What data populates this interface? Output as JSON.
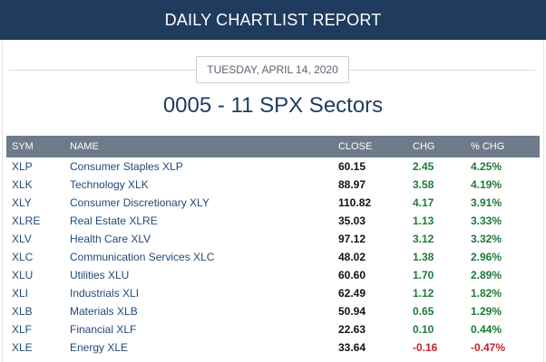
{
  "header": {
    "title": "DAILY CHARTLIST REPORT"
  },
  "report": {
    "date": "TUESDAY, APRIL 14, 2020",
    "title": "0005 - 11 SPX Sectors"
  },
  "table": {
    "columns": {
      "sym": "SYM",
      "name": "NAME",
      "close": "CLOSE",
      "chg": "CHG",
      "pct": "% CHG"
    },
    "rows": [
      {
        "sym": "XLP",
        "name": "Consumer Staples XLP",
        "close": "60.15",
        "chg": "2.45",
        "pct": "4.25%",
        "dir": "pos"
      },
      {
        "sym": "XLK",
        "name": "Technology XLK",
        "close": "88.97",
        "chg": "3.58",
        "pct": "4.19%",
        "dir": "pos"
      },
      {
        "sym": "XLY",
        "name": "Consumer Discretionary XLY",
        "close": "110.82",
        "chg": "4.17",
        "pct": "3.91%",
        "dir": "pos"
      },
      {
        "sym": "XLRE",
        "name": "Real Estate XLRE",
        "close": "35.03",
        "chg": "1.13",
        "pct": "3.33%",
        "dir": "pos"
      },
      {
        "sym": "XLV",
        "name": "Health Care XLV",
        "close": "97.12",
        "chg": "3.12",
        "pct": "3.32%",
        "dir": "pos"
      },
      {
        "sym": "XLC",
        "name": "Communication Services XLC",
        "close": "48.02",
        "chg": "1.38",
        "pct": "2.96%",
        "dir": "pos"
      },
      {
        "sym": "XLU",
        "name": "Utilities XLU",
        "close": "60.60",
        "chg": "1.70",
        "pct": "2.89%",
        "dir": "pos"
      },
      {
        "sym": "XLI",
        "name": "Industrials XLI",
        "close": "62.49",
        "chg": "1.12",
        "pct": "1.82%",
        "dir": "pos"
      },
      {
        "sym": "XLB",
        "name": "Materials XLB",
        "close": "50.94",
        "chg": "0.65",
        "pct": "1.29%",
        "dir": "pos"
      },
      {
        "sym": "XLF",
        "name": "Financial XLF",
        "close": "22.63",
        "chg": "0.10",
        "pct": "0.44%",
        "dir": "pos"
      },
      {
        "sym": "XLE",
        "name": "Energy XLE",
        "close": "33.64",
        "chg": "-0.16",
        "pct": "-0.47%",
        "dir": "neg"
      }
    ]
  },
  "colors": {
    "header_bg": "#1f3c5e",
    "table_header_bg": "#6d7b8a",
    "positive": "#1e7a3a",
    "negative": "#c0242c",
    "link": "#234a78"
  }
}
